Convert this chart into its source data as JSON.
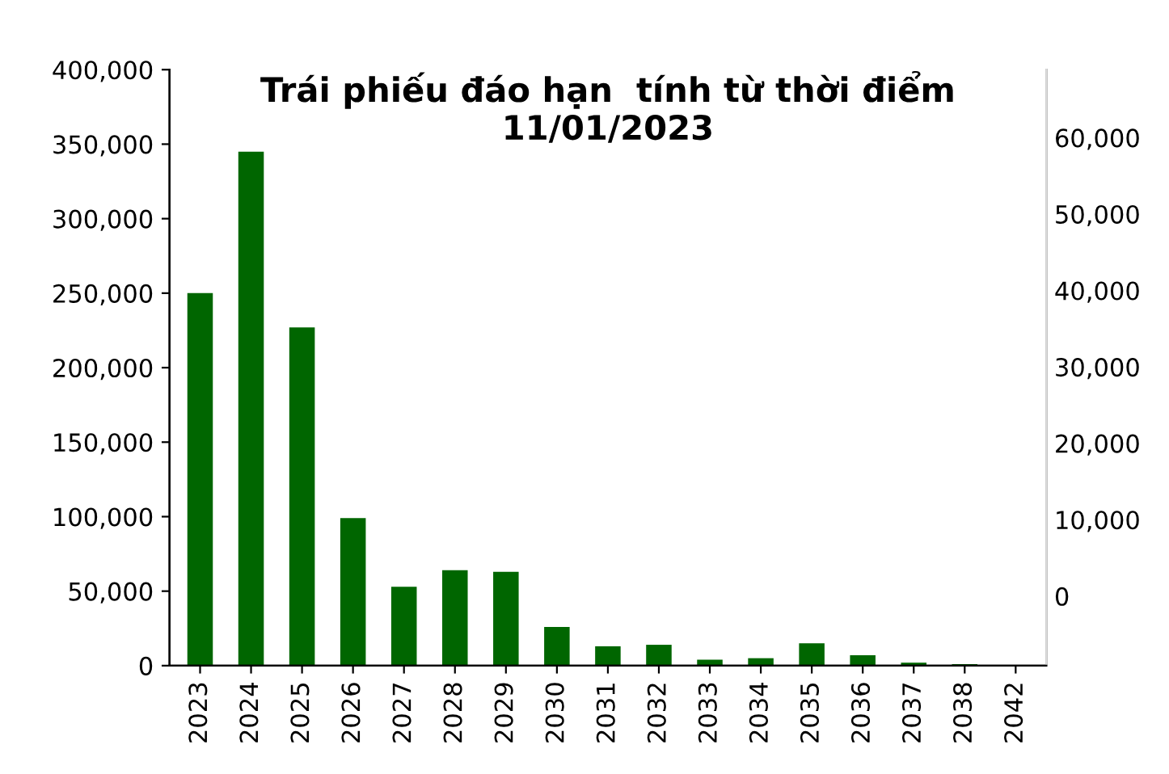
{
  "chart_data": {
    "type": "bar",
    "title": "Trái phiếu đáo hạn  tính từ thời điểm\n11/01/2023",
    "categories": [
      "2023",
      "2024",
      "2025",
      "2026",
      "2027",
      "2028",
      "2029",
      "2030",
      "2031",
      "2032",
      "2033",
      "2034",
      "2035",
      "2036",
      "2037",
      "2038",
      "2042"
    ],
    "series": [
      {
        "color": "#006600",
        "values": [
          250000,
          345000,
          227000,
          99000,
          53000,
          64000,
          63000,
          26000,
          13000,
          14000,
          4000,
          5000,
          15000,
          7000,
          2000,
          1000,
          0
        ]
      }
    ],
    "ylim": [
      0,
      400000
    ],
    "yticks": [
      {
        "value": 0,
        "label": "0"
      },
      {
        "value": 50000,
        "label": "50,000"
      },
      {
        "value": 100000,
        "label": "100,000"
      },
      {
        "value": 150000,
        "label": "150,000"
      },
      {
        "value": 200000,
        "label": "200,000"
      },
      {
        "value": 250000,
        "label": "250,000"
      },
      {
        "value": 300000,
        "label": "300,000"
      },
      {
        "value": 350000,
        "label": "350,000"
      },
      {
        "value": 400000,
        "label": "400,000"
      }
    ],
    "y2lim": [
      -9100,
      68900
    ],
    "y2ticks": [
      {
        "value": 0,
        "label": "0"
      },
      {
        "value": 10000,
        "label": "10,000"
      },
      {
        "value": 20000,
        "label": "20,000"
      },
      {
        "value": 30000,
        "label": "30,000"
      },
      {
        "value": 40000,
        "label": "40,000"
      },
      {
        "value": 50000,
        "label": "50,000"
      },
      {
        "value": 60000,
        "label": "60,000"
      }
    ],
    "grid": false,
    "legend": false
  }
}
